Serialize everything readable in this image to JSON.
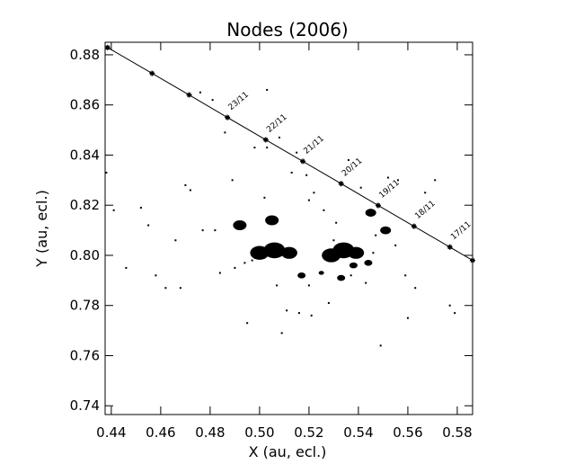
{
  "chart_data": {
    "type": "scatter",
    "title": "Nodes (2006)",
    "x_label": "X (au, ecl.)",
    "y_label": "Y (au, ecl.)",
    "xlim": [
      0.4375,
      0.5862
    ],
    "ylim": [
      0.7365,
      0.885
    ],
    "xticks": [
      {
        "value": 0.44,
        "label": "0.44"
      },
      {
        "value": 0.46,
        "label": "0.46"
      },
      {
        "value": 0.48,
        "label": "0.48"
      },
      {
        "value": 0.5,
        "label": "0.50"
      },
      {
        "value": 0.52,
        "label": "0.52"
      },
      {
        "value": 0.54,
        "label": "0.54"
      },
      {
        "value": 0.56,
        "label": "0.56"
      },
      {
        "value": 0.58,
        "label": "0.58"
      }
    ],
    "yticks": [
      {
        "value": 0.74,
        "label": "0.74"
      },
      {
        "value": 0.76,
        "label": "0.76"
      },
      {
        "value": 0.78,
        "label": "0.78"
      },
      {
        "value": 0.8,
        "label": "0.80"
      },
      {
        "value": 0.82,
        "label": "0.82"
      },
      {
        "value": 0.84,
        "label": "0.84"
      },
      {
        "value": 0.86,
        "label": "0.86"
      },
      {
        "value": 0.88,
        "label": "0.88"
      }
    ],
    "color": "#000000",
    "clusters": {
      "x": [
        0.5,
        0.506,
        0.512,
        0.529,
        0.534,
        0.539,
        0.492,
        0.505,
        0.545,
        0.551,
        0.517,
        0.533,
        0.538,
        0.544,
        0.525
      ],
      "y": [
        0.801,
        0.802,
        0.801,
        0.8,
        0.802,
        0.801,
        0.812,
        0.814,
        0.817,
        0.81,
        0.792,
        0.791,
        0.796,
        0.797,
        0.793
      ],
      "size": [
        7,
        8,
        6,
        7,
        8,
        6,
        5,
        5,
        4,
        4,
        3,
        3,
        3,
        3,
        2
      ]
    },
    "points": {
      "x": [
        0.438,
        0.441,
        0.446,
        0.452,
        0.458,
        0.462,
        0.466,
        0.472,
        0.476,
        0.481,
        0.486,
        0.489,
        0.494,
        0.498,
        0.503,
        0.507,
        0.511,
        0.515,
        0.519,
        0.522,
        0.526,
        0.53,
        0.536,
        0.541,
        0.547,
        0.552,
        0.556,
        0.559,
        0.563,
        0.567,
        0.571,
        0.577,
        0.579,
        0.455,
        0.468,
        0.477,
        0.484,
        0.49,
        0.497,
        0.502,
        0.509,
        0.516,
        0.521,
        0.527,
        0.531,
        0.537,
        0.543,
        0.549,
        0.555,
        0.52,
        0.513,
        0.503,
        0.508,
        0.528,
        0.546,
        0.56,
        0.47,
        0.482,
        0.495,
        0.52
      ],
      "y": [
        0.833,
        0.818,
        0.795,
        0.819,
        0.792,
        0.787,
        0.806,
        0.826,
        0.865,
        0.862,
        0.849,
        0.83,
        0.797,
        0.843,
        0.843,
        0.788,
        0.778,
        0.841,
        0.832,
        0.825,
        0.818,
        0.806,
        0.838,
        0.827,
        0.808,
        0.831,
        0.83,
        0.792,
        0.787,
        0.825,
        0.83,
        0.78,
        0.777,
        0.812,
        0.787,
        0.81,
        0.793,
        0.795,
        0.798,
        0.823,
        0.769,
        0.777,
        0.776,
        0.799,
        0.813,
        0.792,
        0.789,
        0.764,
        0.804,
        0.822,
        0.833,
        0.866,
        0.847,
        0.781,
        0.801,
        0.775,
        0.828,
        0.81,
        0.773,
        0.788
      ]
    },
    "trajectory": {
      "x": [
        0.4385,
        0.4565,
        0.4715,
        0.487,
        0.5025,
        0.5175,
        0.533,
        0.548,
        0.5625,
        0.577,
        0.5862
      ],
      "y": [
        0.8829,
        0.8726,
        0.864,
        0.855,
        0.8461,
        0.8375,
        0.8286,
        0.8199,
        0.8116,
        0.8033,
        0.798
      ],
      "labels": [
        null,
        null,
        null,
        "23/11",
        "22/11",
        "21/11",
        "20/11",
        "19/11",
        "18/11",
        "17/11",
        null
      ]
    }
  }
}
